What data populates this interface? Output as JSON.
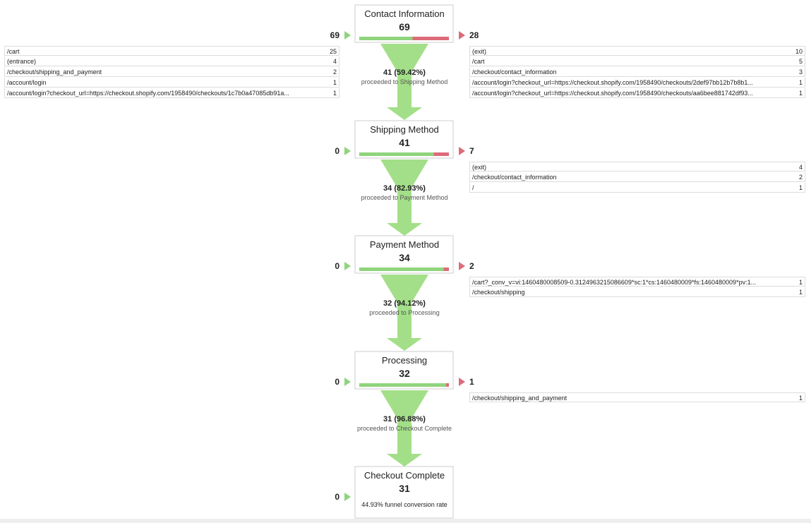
{
  "steps": [
    {
      "name": "Contact Information",
      "count": 69,
      "entrances": 69,
      "exits": 28,
      "entrance_sources": [
        [
          "/cart",
          25
        ],
        [
          "(entrance)",
          4
        ],
        [
          "/checkout/shipping_and_payment",
          2
        ],
        [
          "/account/login",
          1
        ],
        [
          "/account/login?checkout_url=https://checkout.shopify.com/1958490/checkouts/1c7b0a47085db91a...",
          1
        ]
      ],
      "exit_pages": [
        [
          "(exit)",
          10
        ],
        [
          "/cart",
          5
        ],
        [
          "/checkout/contact_information",
          3
        ],
        [
          "/account/login?checkout_url=https://checkout.shopify.com/1958490/checkouts/2def97bb12b7b8b1...",
          1
        ],
        [
          "/account/login?checkout_url=https://checkout.shopify.com/1958490/checkouts/aa6bee881742df93...",
          1
        ]
      ],
      "proceeded": "41 (59.42%)",
      "proceeded_to": "proceeded to Shipping Method"
    },
    {
      "name": "Shipping Method",
      "count": 41,
      "entrances": 0,
      "exits": 7,
      "entrance_sources": [],
      "exit_pages": [
        [
          "(exit)",
          4
        ],
        [
          "/checkout/contact_information",
          2
        ],
        [
          "/",
          1
        ]
      ],
      "proceeded": "34 (82.93%)",
      "proceeded_to": "proceeded to Payment Method"
    },
    {
      "name": "Payment Method",
      "count": 34,
      "entrances": 0,
      "exits": 2,
      "entrance_sources": [],
      "exit_pages": [
        [
          "/cart?_conv_v=vi:1460480008509-0.3124963215086609*sc:1*cs:1460480009*fs:1460480009*pv:1...",
          1
        ],
        [
          "/checkout/shipping",
          1
        ]
      ],
      "proceeded": "32 (94.12%)",
      "proceeded_to": "proceeded to Processing"
    },
    {
      "name": "Processing",
      "count": 32,
      "entrances": 0,
      "exits": 1,
      "entrance_sources": [],
      "exit_pages": [
        [
          "/checkout/shipping_and_payment",
          1
        ]
      ],
      "proceeded": "31 (96.88%)",
      "proceeded_to": "proceeded to Checkout Complete"
    },
    {
      "name": "Checkout Complete",
      "count": 31,
      "entrances": 0,
      "entrance_sources": [],
      "exit_pages": [],
      "conversion": "44.93% funnel conversion rate"
    }
  ]
}
